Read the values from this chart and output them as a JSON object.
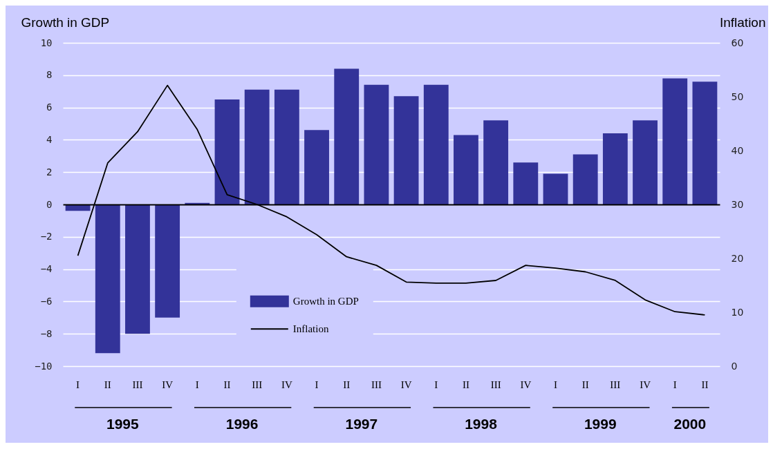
{
  "chart_data": {
    "type": "bar",
    "ylabel": "Growth in GDP",
    "y2label": "Inflation",
    "categories": [
      "I",
      "II",
      "III",
      "IV",
      "I",
      "II",
      "III",
      "IV",
      "I",
      "II",
      "III",
      "IV",
      "I",
      "II",
      "III",
      "IV",
      "I",
      "II",
      "III",
      "IV",
      "I",
      "II"
    ],
    "series": [
      {
        "name": "Growth in GDP",
        "type": "bar",
        "color": "#333399",
        "values": [
          -0.4,
          -9.2,
          -8.0,
          -7.0,
          0.1,
          6.5,
          7.1,
          7.1,
          4.6,
          8.4,
          7.4,
          6.7,
          7.4,
          4.3,
          5.2,
          2.6,
          1.9,
          3.1,
          4.4,
          5.2,
          7.8,
          7.6
        ]
      },
      {
        "name": "Inflation",
        "type": "line",
        "axis": "y2",
        "color": "#000000",
        "values": [
          20.5,
          37.7,
          43.5,
          52.1,
          43.9,
          31.8,
          30.0,
          27.7,
          24.4,
          20.3,
          18.7,
          15.6,
          15.4,
          15.4,
          15.9,
          18.7,
          18.2,
          17.5,
          15.9,
          12.3,
          10.1,
          9.5
        ]
      }
    ],
    "ylim": [
      -10,
      10
    ],
    "yticks": [
      -10,
      -8,
      -6,
      -4,
      -2,
      0,
      2,
      4,
      6,
      8,
      10
    ],
    "y2lim": [
      0,
      60
    ],
    "y2ticks": [
      0,
      10,
      20,
      30,
      40,
      50,
      60
    ],
    "annotations": [
      "1995",
      "1996",
      "1997",
      "1998",
      "1999",
      "2000"
    ],
    "grid": "y",
    "legend": "bottom"
  }
}
